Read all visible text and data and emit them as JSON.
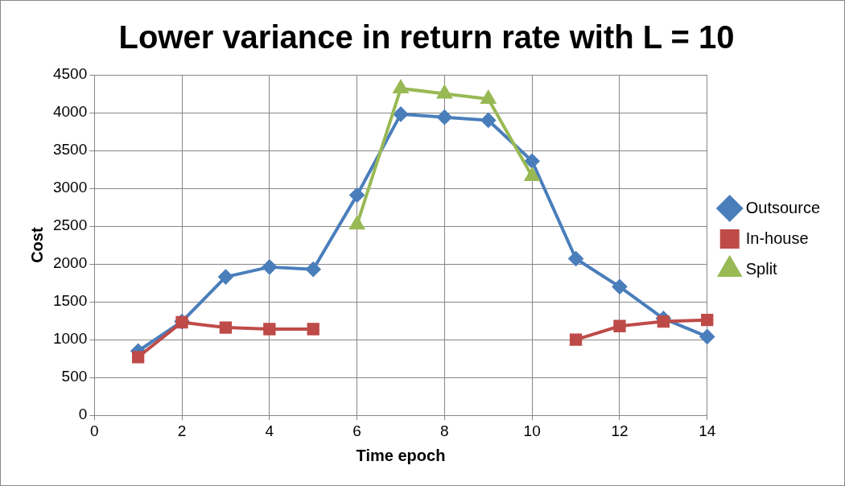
{
  "chart_data": {
    "type": "line",
    "title": "Lower variance in return rate with L = 10",
    "xlabel": "Time epoch",
    "ylabel": "Cost",
    "x": [
      1,
      2,
      3,
      4,
      5,
      6,
      7,
      8,
      9,
      10,
      11,
      12,
      13,
      14
    ],
    "series": [
      {
        "name": "Outsource",
        "color": "#4a7ebb",
        "marker": "diamond",
        "values": [
          850,
          1240,
          1830,
          1960,
          1930,
          2910,
          3980,
          3940,
          3900,
          3360,
          2070,
          1700,
          1280,
          1040
        ]
      },
      {
        "name": "In-house",
        "color": "#be4b48",
        "marker": "square",
        "values": [
          770,
          1230,
          1160,
          1140,
          1140,
          null,
          null,
          null,
          null,
          null,
          1000,
          1180,
          1240,
          1260
        ]
      },
      {
        "name": "Split",
        "color": "#98b954",
        "marker": "triangle",
        "values": [
          null,
          null,
          null,
          null,
          null,
          2520,
          4320,
          4250,
          4180,
          3160,
          null,
          null,
          null,
          null
        ]
      }
    ],
    "xlim": [
      0,
      14
    ],
    "xticks": [
      0,
      2,
      4,
      6,
      8,
      10,
      12,
      14
    ],
    "ylim": [
      0,
      4500
    ],
    "yticks": [
      0,
      500,
      1000,
      1500,
      2000,
      2500,
      3000,
      3500,
      4000,
      4500
    ],
    "grid": true,
    "legend": "right",
    "line_style": "solid"
  }
}
